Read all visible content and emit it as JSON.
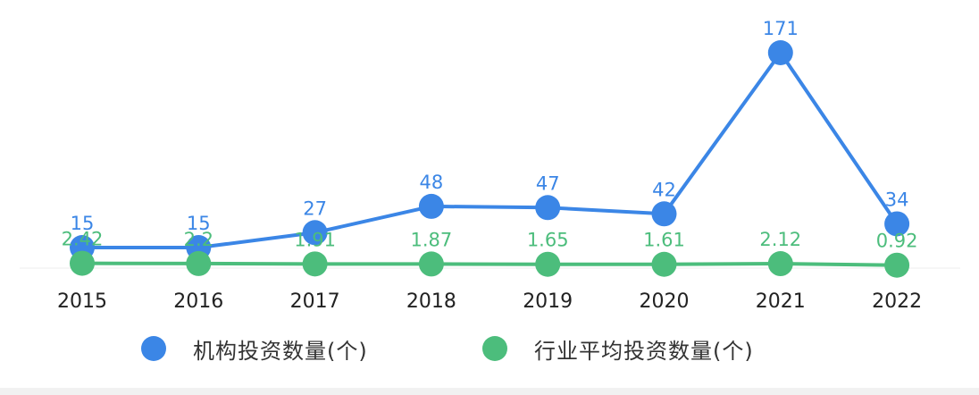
{
  "chart_data": {
    "type": "line",
    "x": [
      "2015",
      "2016",
      "2017",
      "2018",
      "2019",
      "2020",
      "2021",
      "2022"
    ],
    "series": [
      {
        "name": "机构投资数量(个)",
        "color": "#3b86e6",
        "values": [
          15,
          15,
          27,
          48,
          47,
          42,
          171,
          34
        ],
        "labels": [
          "15",
          "15",
          "27",
          "48",
          "47",
          "42",
          "171",
          "34"
        ]
      },
      {
        "name": "行业平均投资数量(个)",
        "color": "#4cbd7c",
        "values": [
          2.42,
          2.2,
          1.91,
          1.87,
          1.65,
          1.61,
          2.12,
          0.92
        ],
        "labels": [
          "2.42",
          "2.2",
          "1.91",
          "1.87",
          "1.65",
          "1.61",
          "2.12",
          "0.92"
        ]
      }
    ],
    "title": "",
    "xlabel": "",
    "ylabel": "",
    "ylim": [
      0,
      180
    ],
    "grid": false,
    "legend_position": "bottom"
  }
}
